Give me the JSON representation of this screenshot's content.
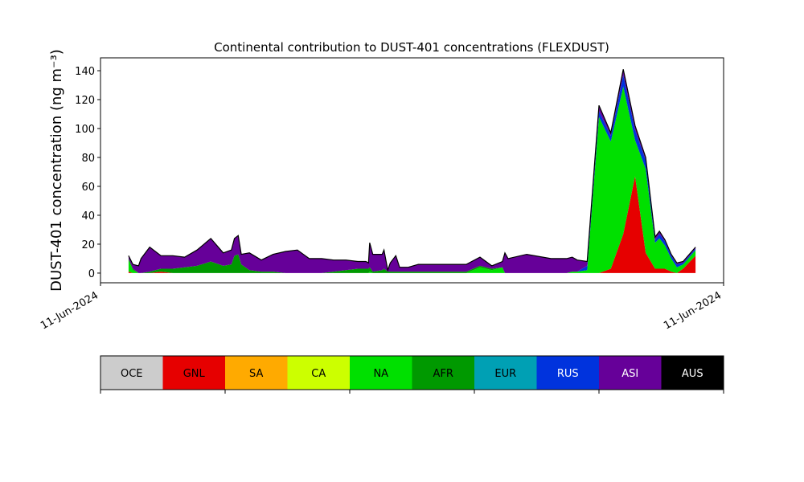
{
  "chart_data": {
    "type": "stackedarea",
    "title": "Continental contribution to DUST-401 concentrations (FLEXDUST)",
    "y_label": "DUST-401 concentration (ng m⁻³)",
    "x": [
      4.5,
      5.2,
      6.1,
      6.5,
      7.9,
      9.7,
      11.6,
      13.5,
      15.5,
      17.7,
      19.7,
      21.0,
      21.5,
      22.1,
      22.6,
      23.9,
      25.8,
      27.7,
      29.7,
      31.6,
      33.5,
      35.5,
      37.4,
      39.4,
      41.3,
      42.6,
      43.0,
      43.2,
      43.7,
      45.2,
      45.5,
      46.1,
      46.5,
      47.4,
      48.0,
      49.4,
      51.0,
      53.5,
      56.1,
      58.7,
      60.9,
      62.8,
      64.5,
      64.9,
      65.4,
      68.4,
      72.3,
      74.8,
      75.7,
      76.5,
      78.1,
      80.0,
      81.9,
      83.9,
      85.8,
      87.5,
      89.0,
      89.7,
      90.6,
      91.6,
      92.5,
      93.5,
      95.5
    ],
    "xlim": [
      0,
      100
    ],
    "xticks": [
      {
        "value": 0,
        "label": "11-Jun-2024"
      },
      {
        "value": 100,
        "label": "11-Jun-2024"
      }
    ],
    "ylim": [
      -6.7,
      148.9
    ],
    "yticks": [
      0,
      20,
      40,
      60,
      80,
      100,
      120,
      140
    ],
    "series": [
      {
        "name": "OCE",
        "color": "#cccccc",
        "values": [
          0,
          0,
          0,
          0,
          0,
          0,
          0,
          0,
          0,
          0,
          0,
          0,
          0,
          0,
          0,
          0,
          0,
          0,
          0,
          0,
          0,
          0,
          0,
          0,
          0,
          0,
          0,
          0,
          0,
          0,
          0,
          0,
          0,
          0,
          0,
          0,
          0,
          0,
          0,
          0,
          0,
          0,
          0,
          0,
          0,
          0,
          0,
          0,
          0,
          0,
          0,
          0,
          0,
          0,
          0,
          0,
          0,
          0,
          0,
          0,
          0,
          0,
          0
        ]
      },
      {
        "name": "GNL",
        "color": "#e60000",
        "values": [
          1,
          0,
          0,
          0,
          0,
          1,
          0,
          0,
          0,
          0,
          0,
          0,
          0,
          0,
          0,
          0,
          0,
          0,
          0,
          0,
          0,
          0,
          0,
          0,
          0,
          0,
          0,
          0,
          0,
          0,
          0,
          0,
          0,
          0,
          0,
          0,
          0,
          0,
          0,
          0,
          0,
          0,
          0,
          0,
          0,
          0,
          0,
          0,
          0,
          0,
          0,
          0,
          3,
          27,
          67,
          14,
          3,
          3,
          3,
          1,
          0,
          3,
          12
        ]
      },
      {
        "name": "SA",
        "color": "#ffaa00",
        "values": [
          0,
          0,
          0,
          0,
          0,
          0,
          0,
          0,
          0,
          0,
          0,
          0,
          0,
          0,
          0,
          0,
          0,
          0,
          0,
          0,
          0,
          0,
          0,
          0,
          0,
          0,
          0,
          0,
          0,
          0,
          0,
          0,
          0,
          0,
          0,
          0,
          0,
          0,
          0,
          0,
          0,
          0,
          0,
          0,
          0,
          0,
          0,
          0,
          0,
          0,
          0,
          0,
          0,
          0,
          0,
          0,
          0,
          0,
          0,
          0,
          0,
          0,
          0
        ]
      },
      {
        "name": "CA",
        "color": "#ccff00",
        "values": [
          0,
          0,
          0,
          0,
          0,
          0,
          0,
          0,
          0,
          0,
          0,
          0,
          0,
          0,
          0,
          0,
          0,
          0,
          0,
          0,
          0,
          0,
          0,
          0,
          0,
          0,
          0,
          0,
          0,
          0,
          0,
          0,
          0,
          0,
          0,
          0,
          0,
          0,
          0,
          0,
          0,
          0,
          0,
          0,
          0,
          0,
          0,
          0,
          0,
          0,
          0,
          0,
          0,
          0,
          0,
          0,
          0,
          0,
          0,
          0,
          0,
          0,
          0
        ]
      },
      {
        "name": "NA",
        "color": "#00e000",
        "values": [
          8,
          2,
          0,
          0,
          0,
          0,
          0,
          0,
          0,
          0,
          0,
          0,
          0,
          0,
          0,
          0,
          0,
          0,
          0,
          0,
          0,
          0,
          0,
          0,
          0,
          0,
          0,
          1,
          0,
          0,
          0,
          0,
          0,
          0,
          0,
          0,
          0,
          0,
          0,
          0,
          4,
          2,
          4,
          0,
          0,
          0,
          0,
          0,
          1,
          1,
          2,
          108,
          88,
          102,
          25,
          58,
          18,
          21,
          16,
          9,
          4,
          3,
          4
        ]
      },
      {
        "name": "AFR",
        "color": "#009900",
        "values": [
          1,
          1,
          0,
          0,
          1,
          2,
          3,
          4,
          5,
          8,
          5,
          6,
          12,
          13,
          6,
          2,
          1,
          1,
          0,
          0,
          0,
          0,
          1,
          2,
          3,
          3,
          3,
          3,
          1,
          2,
          3,
          1,
          1,
          1,
          1,
          1,
          1,
          1,
          1,
          1,
          1,
          1,
          0,
          0,
          0,
          0,
          0,
          0,
          0,
          0,
          0,
          0,
          0,
          0,
          0,
          0,
          0,
          0,
          0,
          0,
          0,
          0,
          0
        ]
      },
      {
        "name": "EUR",
        "color": "#00a0b4",
        "values": [
          0,
          0,
          0,
          0,
          0,
          0,
          0,
          0,
          0,
          0,
          0,
          0,
          0,
          0,
          0,
          0,
          0,
          0,
          0,
          0,
          0,
          0,
          0,
          0,
          0,
          0,
          0,
          0,
          0,
          0,
          0,
          0,
          0,
          0,
          0,
          0,
          0,
          0,
          0,
          0,
          0,
          0,
          0,
          0,
          0,
          0,
          0,
          0,
          0,
          0,
          0,
          0,
          0,
          0,
          0,
          0,
          0,
          0,
          0,
          0,
          0,
          0,
          0
        ]
      },
      {
        "name": "RUS",
        "color": "#0033dd",
        "values": [
          0,
          0,
          0,
          0,
          0,
          0,
          0,
          0,
          0,
          0,
          0,
          0,
          0,
          0,
          0,
          0,
          0,
          0,
          0,
          0,
          0,
          0,
          0,
          0,
          0,
          0,
          0,
          0,
          0,
          0,
          0,
          0,
          0,
          0,
          0,
          0,
          0,
          0,
          0,
          0,
          0,
          0,
          0,
          0,
          0,
          0,
          0,
          0,
          0,
          0,
          3,
          4,
          4,
          8,
          7,
          6,
          2,
          3,
          3,
          2,
          2,
          1,
          1
        ]
      },
      {
        "name": "ASI",
        "color": "#660099",
        "values": [
          2,
          3,
          5,
          10,
          17,
          9,
          9,
          7,
          11,
          16,
          9,
          10,
          12,
          13,
          7,
          12,
          8,
          12,
          15,
          16,
          10,
          10,
          8,
          7,
          5,
          5,
          4,
          17,
          12,
          11,
          13,
          1,
          6,
          11,
          3,
          3,
          5,
          5,
          5,
          5,
          6,
          2,
          4,
          14,
          10,
          13,
          10,
          10,
          10,
          8,
          3,
          4,
          2,
          4,
          3,
          2,
          2,
          2,
          1,
          1,
          1,
          1,
          1
        ]
      },
      {
        "name": "AUS",
        "color": "#000000",
        "values": [
          0,
          0,
          0,
          0,
          0,
          0,
          0,
          0,
          0,
          0,
          0,
          0,
          0,
          0,
          0,
          0,
          0,
          0,
          0,
          0,
          0,
          0,
          0,
          0,
          0,
          0,
          0,
          0,
          0,
          0,
          0,
          0,
          0,
          0,
          0,
          0,
          0,
          0,
          0,
          0,
          0,
          0,
          0,
          0,
          0,
          0,
          0,
          0,
          0,
          0,
          0,
          0,
          0,
          0,
          0,
          0,
          0,
          0,
          0,
          0,
          0,
          0,
          0
        ]
      }
    ]
  }
}
